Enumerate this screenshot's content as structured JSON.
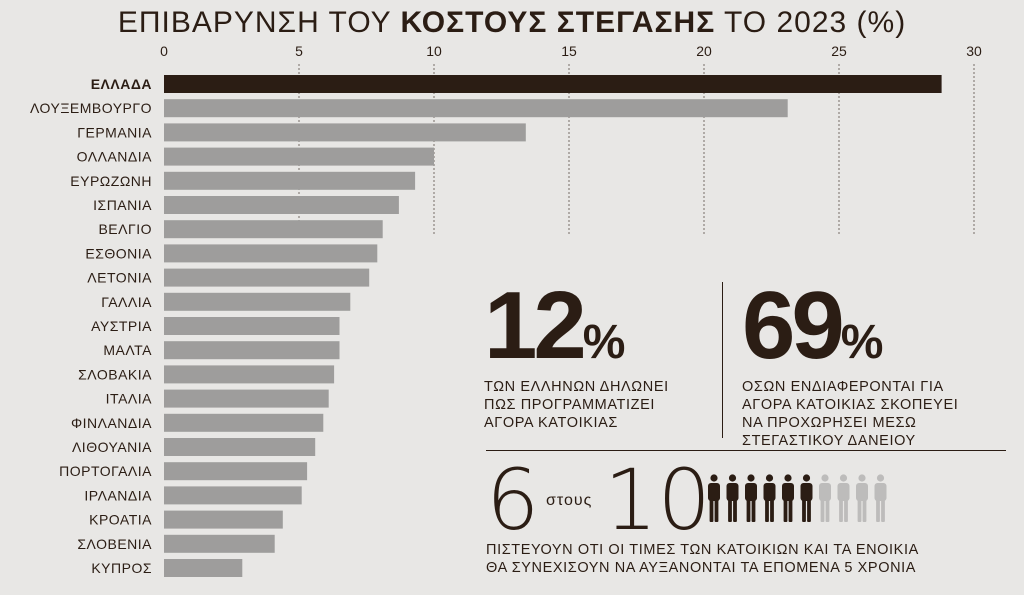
{
  "title": {
    "prefix": "ΕΠΙΒΑΡΥΝΣΗ ΤΟΥ",
    "bold": "ΚΟΣΤΟΥΣ ΣΤΕΓΑΣΗΣ",
    "suffix": "ΤΟ 2023 (%)"
  },
  "colors": {
    "highlight": "#2b1d14",
    "bar": "#9e9d9c",
    "background": "#e8e7e5",
    "grid": "#2b1d14",
    "person_light": "#bdbcbb"
  },
  "chart_data": {
    "type": "bar",
    "orientation": "horizontal",
    "title": "ΕΠΙΒΑΡΥΝΣΗ ΤΟΥ ΚΟΣΤΟΥΣ ΣΤΕΓΑΣΗΣ ΤΟ 2023 (%)",
    "xlim": [
      0,
      30
    ],
    "ticks": [
      0,
      5,
      10,
      15,
      20,
      25,
      30
    ],
    "grid": "vertical dashed",
    "highlight_category": "ΕΛΛΑΔΑ",
    "categories": [
      "ΕΛΛΑΔΑ",
      "ΛΟΥΞΕΜΒΟΥΡΓΟ",
      "ΓΕΡΜΑΝΙΑ",
      "ΟΛΛΑΝΔΙΑ",
      "ΕΥΡΩΖΩΝΗ",
      "ΙΣΠΑΝΙΑ",
      "ΒΕΛΓΙΟ",
      "ΕΣΘΟΝΙΑ",
      "ΛΕΤΟΝΙΑ",
      "ΓΑΛΛΙΑ",
      "ΑΥΣΤΡΙΑ",
      "ΜΑΛΤΑ",
      "ΣΛΟΒΑΚΙΑ",
      "ΙΤΑΛΙΑ",
      "ΦΙΝΛΑΝΔΙΑ",
      "ΛΙΘΟΥΑΝΙΑ",
      "ΠΟΡΤΟΓΑΛΙΑ",
      "ΙΡΛΑΝΔΙΑ",
      "ΚΡΟΑΤΙΑ",
      "ΣΛΟΒΕΝΙΑ",
      "ΚΥΠΡΟΣ"
    ],
    "values": [
      28.8,
      23.1,
      13.4,
      10.0,
      9.3,
      8.7,
      8.1,
      7.9,
      7.6,
      6.9,
      6.5,
      6.5,
      6.3,
      6.1,
      5.9,
      5.6,
      5.3,
      5.1,
      4.4,
      4.1,
      2.9
    ]
  },
  "stat1": {
    "number": "12",
    "percent": "%",
    "lines": [
      "ΤΩΝ ΕΛΛΗΝΩΝ ΔΗΛΩΝΕΙ",
      "ΠΩΣ ΠΡΟΓΡΑΜΜΑΤΙΖΕΙ",
      "ΑΓΟΡΑ ΚΑΤΟΙΚΙΑΣ"
    ]
  },
  "stat2": {
    "number": "69",
    "percent": "%",
    "lines": [
      "ΟΣΩΝ ΕΝΔΙΑΦΕΡΟΝΤΑΙ ΓΙΑ",
      "ΑΓΟΡΑ ΚΑΤΟΙΚΙΑΣ ΣΚΟΠΕΥΕΙ",
      "ΝΑ ΠΡΟΧΩΡΗΣΕΙ ΜΕΣΩ",
      "ΣΤΕΓΑΣΤΙΚΟΥ ΔΑΝΕΙΟΥ"
    ]
  },
  "stat3": {
    "number": "6",
    "connector": "στους",
    "total": "10",
    "filled_people": 6,
    "total_people": 10,
    "lines": [
      "ΠΙΣΤΕΥΟΥΝ ΟΤΙ ΟΙ ΤΙΜΕΣ ΤΩΝ ΚΑΤΟΙΚΙΩΝ ΚΑΙ ΤΑ ΕΝΟΙΚΙΑ",
      "ΘΑ ΣΥΝΕΧΙΣΟΥΝ ΝΑ ΑΥΞΑΝΟΝΤΑΙ ΤΑ ΕΠΟΜΕΝΑ 5 ΧΡΟΝΙΑ"
    ]
  }
}
